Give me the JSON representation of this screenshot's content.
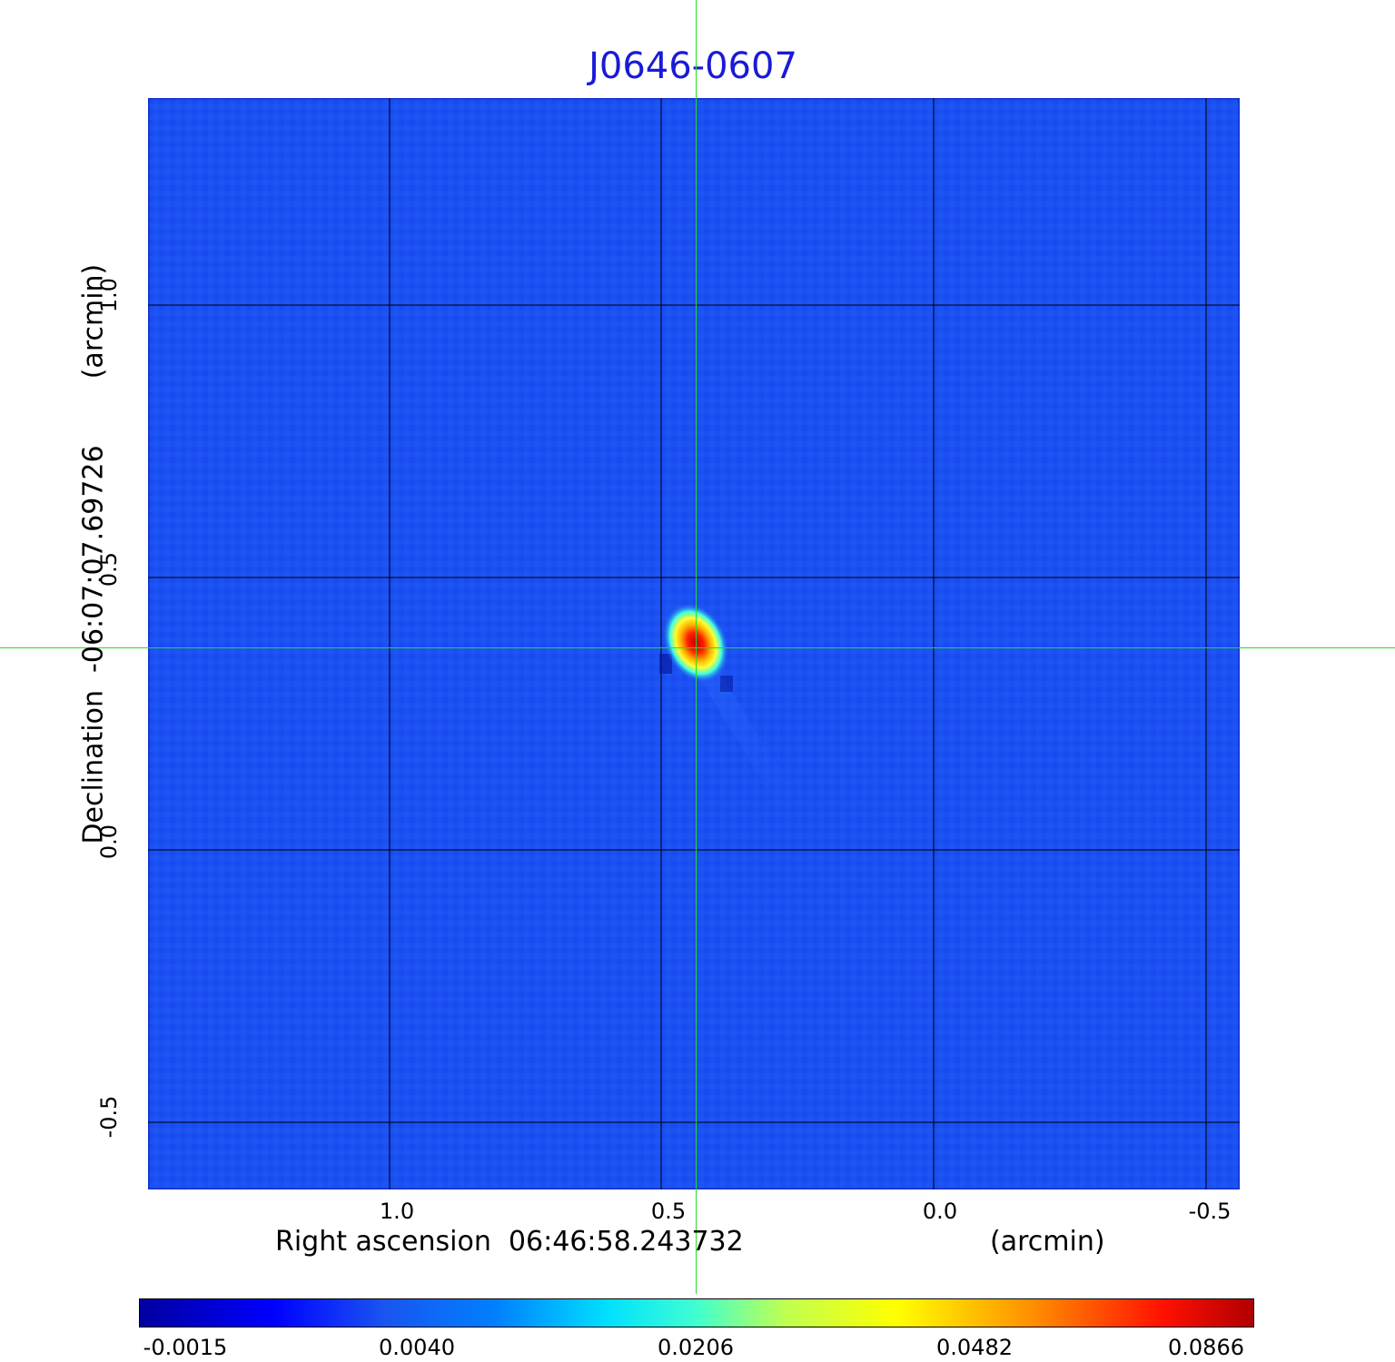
{
  "title": "J0646-0607",
  "x_axis": {
    "label": "Right ascension  06:46:58.243732",
    "unit": "(arcmin)",
    "ticks": [
      "1.0",
      "0.5",
      "0.0",
      "-0.5"
    ]
  },
  "y_axis": {
    "label": "Declination  -06:07:07.69726",
    "unit": "(arcmin)",
    "ticks": [
      "1.0",
      "0.5",
      "0.0",
      "-0.5"
    ]
  },
  "colorbar": {
    "ticks": [
      "-0.0015",
      "0.0040",
      "0.0206",
      "0.0482",
      "0.0866"
    ]
  },
  "colors": {
    "title": "#1a1ad6",
    "background_map": "#1a4cf0",
    "crosshair": "#22dd22",
    "grid": "#000000"
  }
}
